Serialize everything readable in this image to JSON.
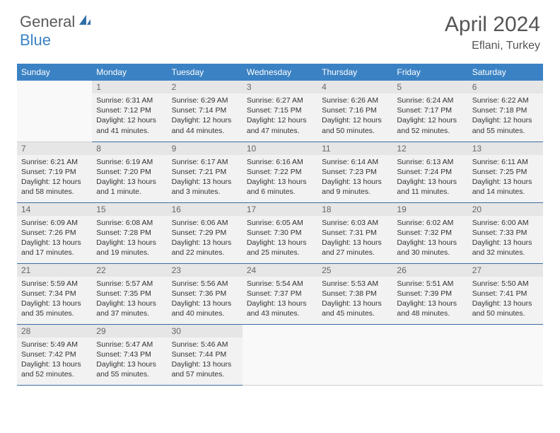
{
  "logo": {
    "general": "General",
    "blue": "Blue"
  },
  "title": "April 2024",
  "location": "Eflani, Turkey",
  "colors": {
    "header_bg": "#3b82c4",
    "cell_bg": "#f2f2f2",
    "daynum_bg": "#e6e6e6",
    "border": "#3b6ea0",
    "text": "#333333"
  },
  "day_headers": [
    "Sunday",
    "Monday",
    "Tuesday",
    "Wednesday",
    "Thursday",
    "Friday",
    "Saturday"
  ],
  "weeks": [
    [
      null,
      {
        "n": "1",
        "sr": "Sunrise: 6:31 AM",
        "ss": "Sunset: 7:12 PM",
        "dl": "Daylight: 12 hours and 41 minutes."
      },
      {
        "n": "2",
        "sr": "Sunrise: 6:29 AM",
        "ss": "Sunset: 7:14 PM",
        "dl": "Daylight: 12 hours and 44 minutes."
      },
      {
        "n": "3",
        "sr": "Sunrise: 6:27 AM",
        "ss": "Sunset: 7:15 PM",
        "dl": "Daylight: 12 hours and 47 minutes."
      },
      {
        "n": "4",
        "sr": "Sunrise: 6:26 AM",
        "ss": "Sunset: 7:16 PM",
        "dl": "Daylight: 12 hours and 50 minutes."
      },
      {
        "n": "5",
        "sr": "Sunrise: 6:24 AM",
        "ss": "Sunset: 7:17 PM",
        "dl": "Daylight: 12 hours and 52 minutes."
      },
      {
        "n": "6",
        "sr": "Sunrise: 6:22 AM",
        "ss": "Sunset: 7:18 PM",
        "dl": "Daylight: 12 hours and 55 minutes."
      }
    ],
    [
      {
        "n": "7",
        "sr": "Sunrise: 6:21 AM",
        "ss": "Sunset: 7:19 PM",
        "dl": "Daylight: 12 hours and 58 minutes."
      },
      {
        "n": "8",
        "sr": "Sunrise: 6:19 AM",
        "ss": "Sunset: 7:20 PM",
        "dl": "Daylight: 13 hours and 1 minute."
      },
      {
        "n": "9",
        "sr": "Sunrise: 6:17 AM",
        "ss": "Sunset: 7:21 PM",
        "dl": "Daylight: 13 hours and 3 minutes."
      },
      {
        "n": "10",
        "sr": "Sunrise: 6:16 AM",
        "ss": "Sunset: 7:22 PM",
        "dl": "Daylight: 13 hours and 6 minutes."
      },
      {
        "n": "11",
        "sr": "Sunrise: 6:14 AM",
        "ss": "Sunset: 7:23 PM",
        "dl": "Daylight: 13 hours and 9 minutes."
      },
      {
        "n": "12",
        "sr": "Sunrise: 6:13 AM",
        "ss": "Sunset: 7:24 PM",
        "dl": "Daylight: 13 hours and 11 minutes."
      },
      {
        "n": "13",
        "sr": "Sunrise: 6:11 AM",
        "ss": "Sunset: 7:25 PM",
        "dl": "Daylight: 13 hours and 14 minutes."
      }
    ],
    [
      {
        "n": "14",
        "sr": "Sunrise: 6:09 AM",
        "ss": "Sunset: 7:26 PM",
        "dl": "Daylight: 13 hours and 17 minutes."
      },
      {
        "n": "15",
        "sr": "Sunrise: 6:08 AM",
        "ss": "Sunset: 7:28 PM",
        "dl": "Daylight: 13 hours and 19 minutes."
      },
      {
        "n": "16",
        "sr": "Sunrise: 6:06 AM",
        "ss": "Sunset: 7:29 PM",
        "dl": "Daylight: 13 hours and 22 minutes."
      },
      {
        "n": "17",
        "sr": "Sunrise: 6:05 AM",
        "ss": "Sunset: 7:30 PM",
        "dl": "Daylight: 13 hours and 25 minutes."
      },
      {
        "n": "18",
        "sr": "Sunrise: 6:03 AM",
        "ss": "Sunset: 7:31 PM",
        "dl": "Daylight: 13 hours and 27 minutes."
      },
      {
        "n": "19",
        "sr": "Sunrise: 6:02 AM",
        "ss": "Sunset: 7:32 PM",
        "dl": "Daylight: 13 hours and 30 minutes."
      },
      {
        "n": "20",
        "sr": "Sunrise: 6:00 AM",
        "ss": "Sunset: 7:33 PM",
        "dl": "Daylight: 13 hours and 32 minutes."
      }
    ],
    [
      {
        "n": "21",
        "sr": "Sunrise: 5:59 AM",
        "ss": "Sunset: 7:34 PM",
        "dl": "Daylight: 13 hours and 35 minutes."
      },
      {
        "n": "22",
        "sr": "Sunrise: 5:57 AM",
        "ss": "Sunset: 7:35 PM",
        "dl": "Daylight: 13 hours and 37 minutes."
      },
      {
        "n": "23",
        "sr": "Sunrise: 5:56 AM",
        "ss": "Sunset: 7:36 PM",
        "dl": "Daylight: 13 hours and 40 minutes."
      },
      {
        "n": "24",
        "sr": "Sunrise: 5:54 AM",
        "ss": "Sunset: 7:37 PM",
        "dl": "Daylight: 13 hours and 43 minutes."
      },
      {
        "n": "25",
        "sr": "Sunrise: 5:53 AM",
        "ss": "Sunset: 7:38 PM",
        "dl": "Daylight: 13 hours and 45 minutes."
      },
      {
        "n": "26",
        "sr": "Sunrise: 5:51 AM",
        "ss": "Sunset: 7:39 PM",
        "dl": "Daylight: 13 hours and 48 minutes."
      },
      {
        "n": "27",
        "sr": "Sunrise: 5:50 AM",
        "ss": "Sunset: 7:41 PM",
        "dl": "Daylight: 13 hours and 50 minutes."
      }
    ],
    [
      {
        "n": "28",
        "sr": "Sunrise: 5:49 AM",
        "ss": "Sunset: 7:42 PM",
        "dl": "Daylight: 13 hours and 52 minutes."
      },
      {
        "n": "29",
        "sr": "Sunrise: 5:47 AM",
        "ss": "Sunset: 7:43 PM",
        "dl": "Daylight: 13 hours and 55 minutes."
      },
      {
        "n": "30",
        "sr": "Sunrise: 5:46 AM",
        "ss": "Sunset: 7:44 PM",
        "dl": "Daylight: 13 hours and 57 minutes."
      },
      null,
      null,
      null,
      null
    ]
  ]
}
